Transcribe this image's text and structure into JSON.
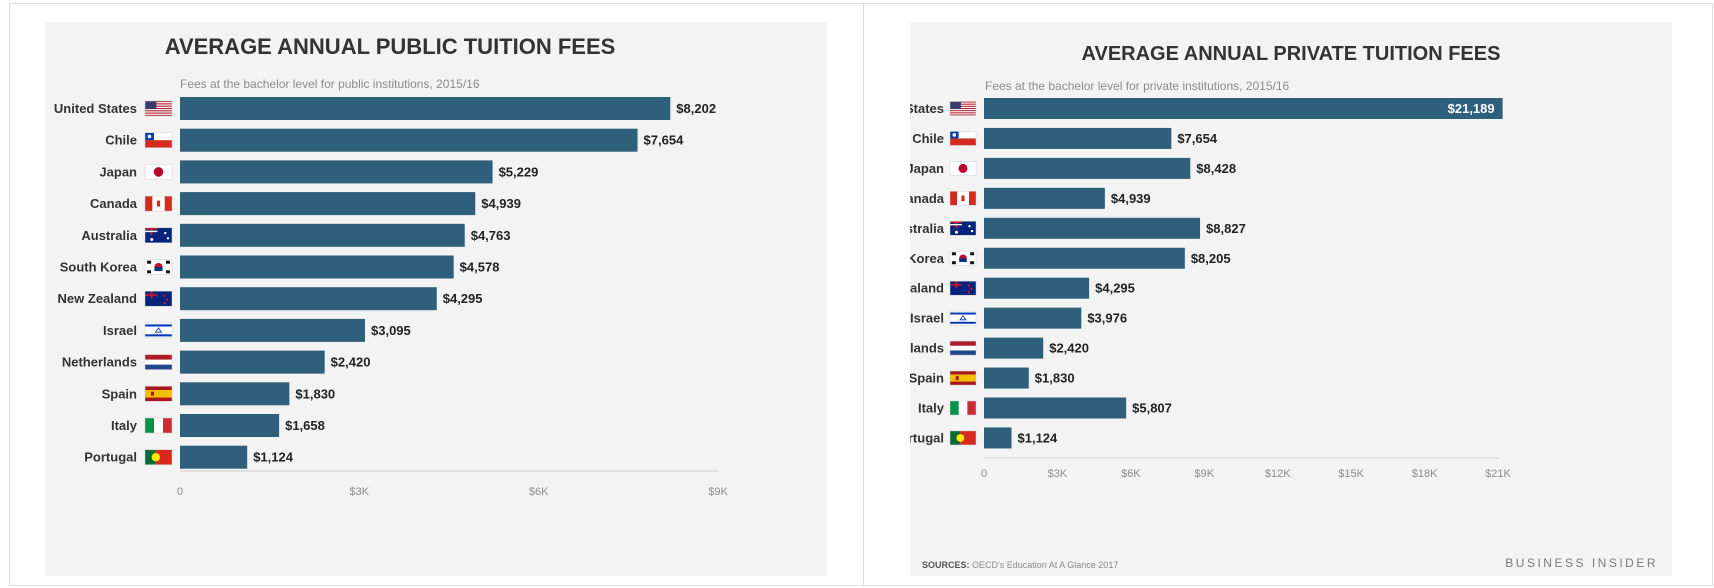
{
  "chart_data": [
    {
      "type": "bar",
      "orientation": "horizontal",
      "title": "AVERAGE ANNUAL PUBLIC TUITION FEES",
      "subtitle": "Fees at the bachelor level for public institutions, 2015/16",
      "categories": [
        "United States",
        "Chile",
        "Japan",
        "Canada",
        "Australia",
        "South Korea",
        "New Zealand",
        "Israel",
        "Netherlands",
        "Spain",
        "Italy",
        "Portugal"
      ],
      "values": [
        8202,
        7654,
        5229,
        4939,
        4763,
        4578,
        4295,
        3095,
        2420,
        1830,
        1658,
        1124
      ],
      "value_labels": [
        "$8,202",
        "$7,654",
        "$5,229",
        "$4,939",
        "$4,763",
        "$4,578",
        "$4,295",
        "$3,095",
        "$2,420",
        "$1,830",
        "$1,658",
        "$1,124"
      ],
      "xlim": [
        0,
        9000
      ],
      "ticks": [
        0,
        3000,
        6000,
        9000
      ],
      "tick_labels": [
        "0",
        "$3K",
        "$6K",
        "$9K"
      ],
      "bar_color": "#2e5f7b",
      "xlabel": "",
      "ylabel": "",
      "grid": false
    },
    {
      "type": "bar",
      "orientation": "horizontal",
      "title": "AVERAGE ANNUAL PRIVATE TUITION FEES",
      "subtitle": "Fees at the bachelor level for private institutions, 2015/16",
      "categories": [
        "United States",
        "Chile",
        "Japan",
        "Canada",
        "Australia",
        "South Korea",
        "New Zealand",
        "Israel",
        "Netherlands",
        "Spain",
        "Italy",
        "Portugal"
      ],
      "values": [
        21189,
        7654,
        8428,
        4939,
        8827,
        8205,
        4295,
        3976,
        2420,
        1830,
        5807,
        1124
      ],
      "value_labels": [
        "$21,189",
        "$7,654",
        "$8,428",
        "$4,939",
        "$8,827",
        "$8,205",
        "$4,295",
        "$3,976",
        "$2,420",
        "$1,830",
        "$5,807",
        "$1,124"
      ],
      "xlim": [
        0,
        21000
      ],
      "ticks": [
        0,
        3000,
        6000,
        9000,
        12000,
        15000,
        18000,
        21000
      ],
      "tick_labels": [
        "0",
        "$3K",
        "$6K",
        "$9K",
        "$12K",
        "$15K",
        "$18K",
        "$21K"
      ],
      "bar_color": "#2e5f7b",
      "xlabel": "",
      "ylabel": "",
      "grid": false
    }
  ],
  "flags": [
    "us-flag",
    "chile-flag",
    "japan-flag",
    "canada-flag",
    "australia-flag",
    "south-korea-flag",
    "new-zealand-flag",
    "israel-flag",
    "netherlands-flag",
    "spain-flag",
    "italy-flag",
    "portugal-flag"
  ],
  "footer": {
    "sources_label": "SOURCES:",
    "sources_text": " OECD's Education At A Glance 2017",
    "brand": "BUSINESS INSIDER"
  }
}
